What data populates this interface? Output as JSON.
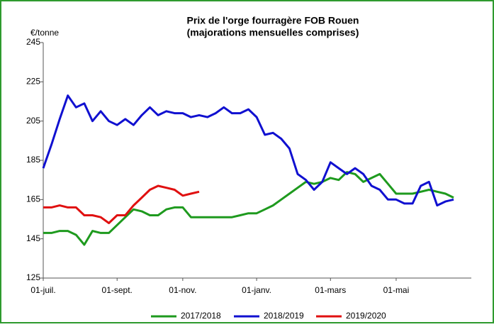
{
  "chart_data": {
    "type": "line",
    "title": "Prix de l'orge fourragère FOB Rouen",
    "subtitle": "(majorations mensuelles comprises)",
    "y_label": "€/tonne",
    "categories": [
      "01-juil.",
      null,
      null,
      null,
      null,
      null,
      null,
      null,
      null,
      "01-sept.",
      null,
      null,
      null,
      null,
      null,
      null,
      null,
      "01-nov.",
      null,
      null,
      null,
      null,
      null,
      null,
      null,
      null,
      "01-janv.",
      null,
      null,
      null,
      null,
      null,
      null,
      null,
      null,
      "01-mars",
      null,
      null,
      null,
      null,
      null,
      null,
      null,
      "01-mai",
      null,
      null,
      null,
      null,
      null,
      null,
      null
    ],
    "series": [
      {
        "name": "2017/2018",
        "color": "#1e9a1e",
        "values": [
          148,
          148,
          149,
          149,
          147,
          142,
          149,
          148,
          148,
          152,
          156,
          160,
          159,
          157,
          157,
          160,
          161,
          161,
          156,
          156,
          156,
          156,
          156,
          156,
          157,
          158,
          158,
          160,
          162,
          165,
          168,
          171,
          174,
          173,
          174,
          176,
          175,
          179,
          178,
          174,
          176,
          178,
          173,
          168,
          168,
          168,
          169,
          170,
          169,
          168,
          166
        ]
      },
      {
        "name": "2018/2019",
        "color": "#1010d0",
        "values": [
          181,
          193,
          206,
          218,
          212,
          214,
          205,
          210,
          205,
          203,
          206,
          203,
          208,
          212,
          208,
          210,
          209,
          209,
          207,
          208,
          207,
          209,
          212,
          209,
          209,
          211,
          207,
          198,
          199,
          196,
          191,
          178,
          175,
          170,
          174,
          184,
          181,
          178,
          181,
          178,
          172,
          170,
          165,
          165,
          163,
          163,
          172,
          174,
          162,
          164,
          165
        ]
      },
      {
        "name": "2019/2020",
        "color": "#e01010",
        "values": [
          161,
          161,
          162,
          161,
          161,
          157,
          157,
          156,
          153,
          157,
          157,
          162,
          166,
          170,
          172,
          171,
          170,
          167,
          168,
          169,
          null,
          null,
          null,
          null,
          null,
          null,
          null,
          null,
          null,
          null,
          null,
          null,
          null,
          null,
          null,
          null,
          null,
          null,
          null,
          null,
          null,
          null,
          null,
          null,
          null,
          null,
          null,
          null,
          null,
          null,
          null
        ]
      }
    ],
    "ylim": [
      125,
      245
    ],
    "yticks": [
      125,
      145,
      165,
      185,
      205,
      225,
      245
    ],
    "grid": false,
    "legend": "bottom"
  }
}
